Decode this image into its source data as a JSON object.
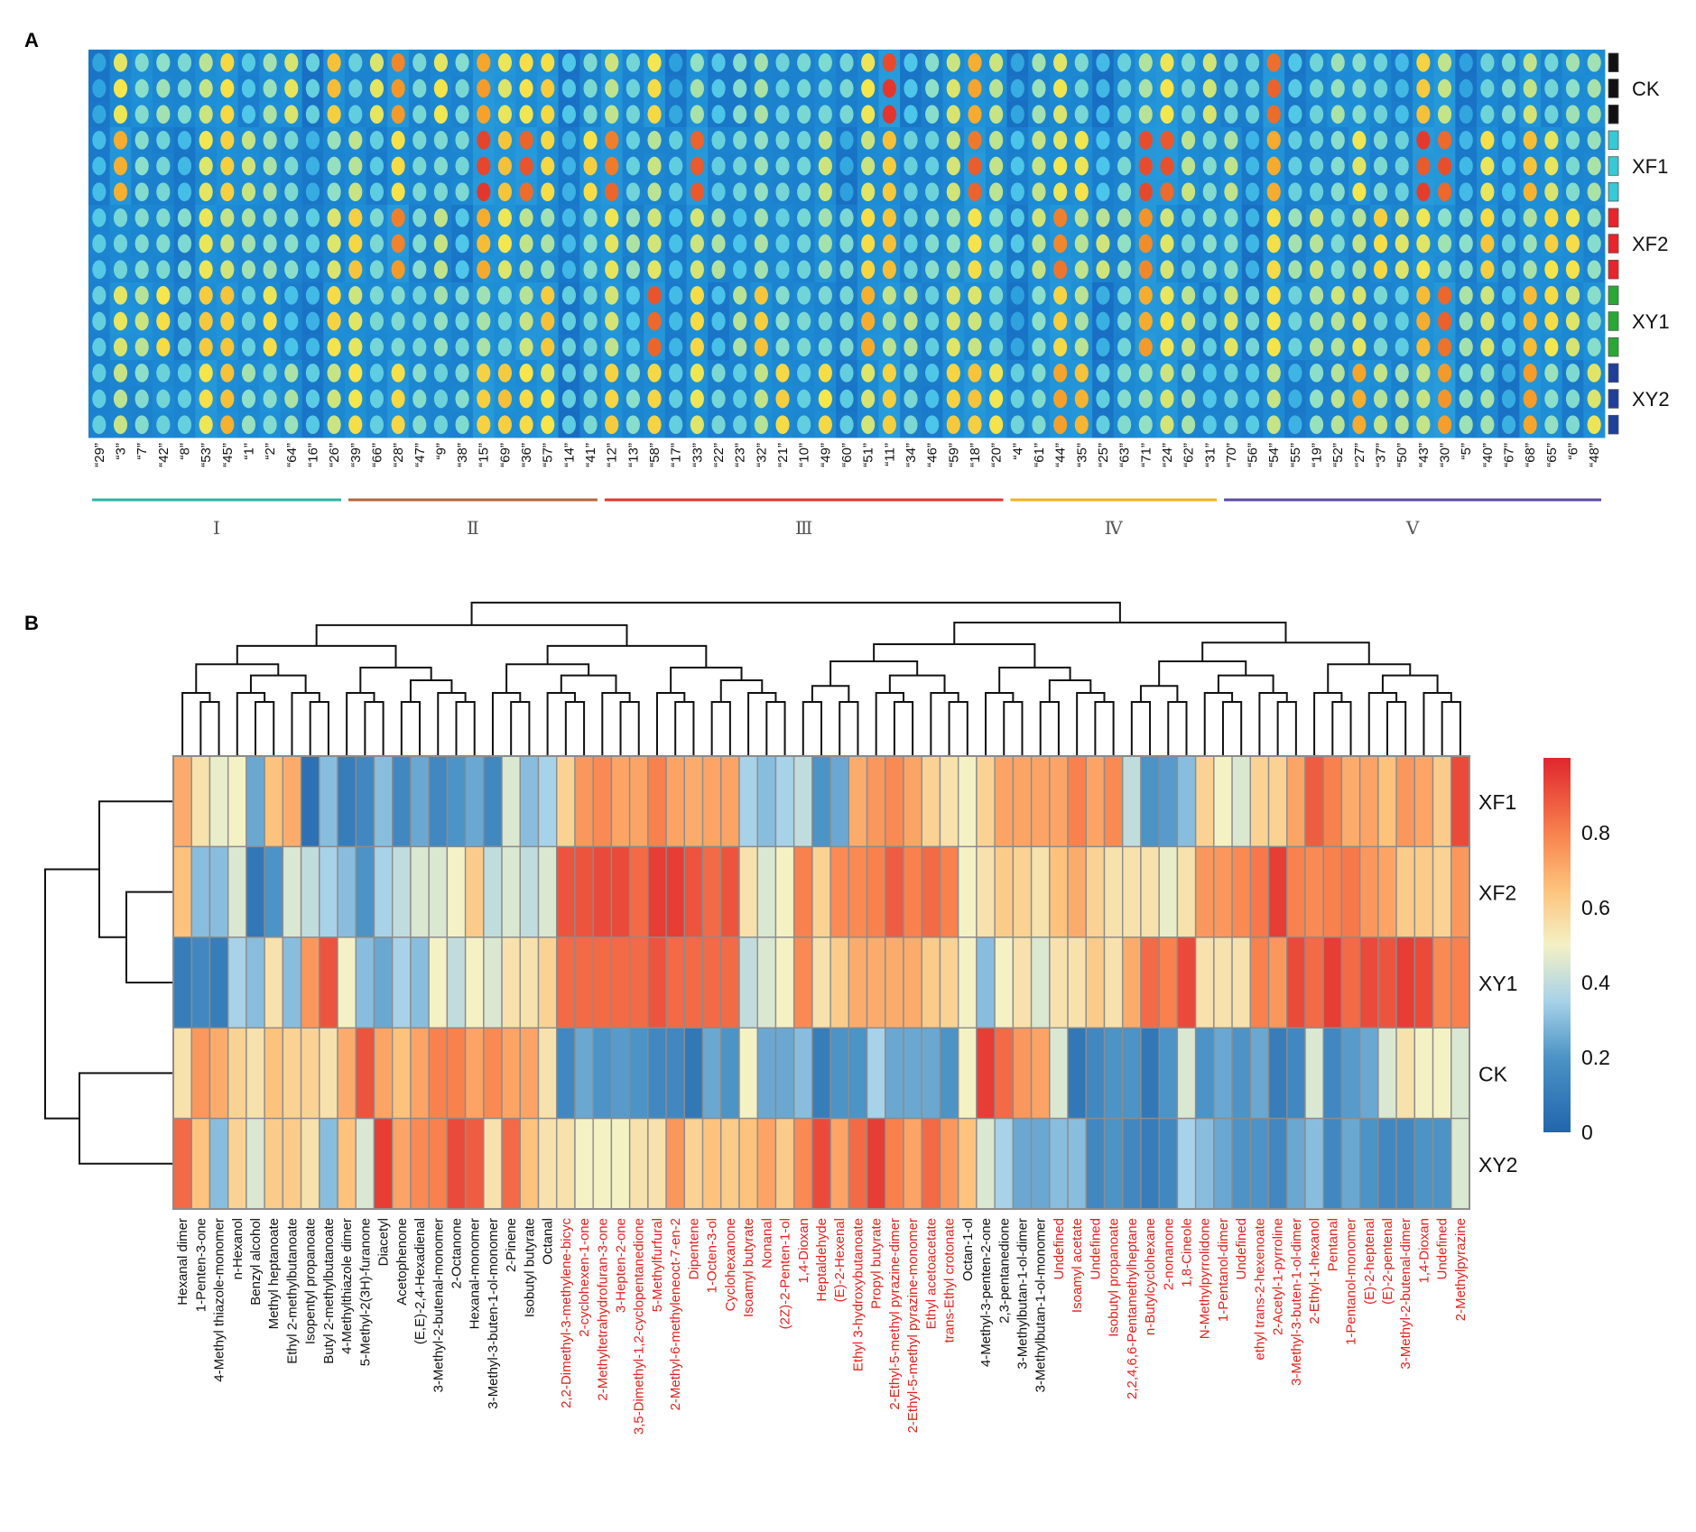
{
  "chart_data": [
    {
      "panel": "A",
      "type": "heatmap",
      "title": "",
      "samples": [
        "CK",
        "XF1",
        "XF2",
        "XY1",
        "XY2"
      ],
      "sample_colors": {
        "CK": "#111111",
        "XF1": "#36c9d6",
        "XF2": "#e8242c",
        "XY1": "#2aa836",
        "XY2": "#1f3f9a"
      },
      "replicates_per_sample": 3,
      "columns": [
        "“29”",
        "“3”",
        "“7”",
        "“42”",
        "“8”",
        "“53”",
        "“45”",
        "“1”",
        "“2”",
        "“64”",
        "“16”",
        "“26”",
        "“39”",
        "“66”",
        "“28”",
        "“47”",
        "“9”",
        "“38”",
        "“15”",
        "“69”",
        "“36”",
        "“57”",
        "“14”",
        "“41”",
        "“12”",
        "“13”",
        "“58”",
        "“17”",
        "“33”",
        "“22”",
        "“23”",
        "“32”",
        "“21”",
        "“10”",
        "“49”",
        "“60”",
        "“51”",
        "“11”",
        "“34”",
        "“46”",
        "“59”",
        "“18”",
        "“20”",
        "“4”",
        "“61”",
        "“44”",
        "“35”",
        "“25”",
        "“63”",
        "“71”",
        "“24”",
        "“62”",
        "“31”",
        "“70”",
        "“56”",
        "“54”",
        "“55”",
        "“19”",
        "“52”",
        "“27”",
        "“37”",
        "“50”",
        "“43”",
        "“30”",
        "“5”",
        "“40”",
        "“67”",
        "“68”",
        "“65”",
        "“6”",
        "“48”"
      ],
      "groups": [
        {
          "label": "Ⅰ",
          "count": 12,
          "color": "#2cb5a5"
        },
        {
          "label": "Ⅱ",
          "count": 12,
          "color": "#b6653a"
        },
        {
          "label": "Ⅲ",
          "count": 19,
          "color": "#e8332a"
        },
        {
          "label": "Ⅳ",
          "count": 10,
          "color": "#f2b21c"
        },
        {
          "label": "Ⅴ",
          "count": 18,
          "color": "#5b4aa5"
        }
      ]
    },
    {
      "panel": "B",
      "type": "heatmap",
      "title": "",
      "rows": [
        "XF1",
        "XF2",
        "XY1",
        "CK",
        "XY2"
      ],
      "colorbar": {
        "min": 0,
        "max": 1,
        "ticks": [
          0,
          0.2,
          0.4,
          0.6,
          0.8
        ],
        "tick_labels": [
          "0",
          "0.2",
          "0.4",
          "0.6",
          "0.8"
        ]
      },
      "columns": [
        "Hexanal dimer",
        "1-Penten-3-one",
        "4-Methyl thiazole-monomer",
        "n-Hexanol",
        "Benzyl alcohol",
        "Methyl heptanoate",
        "Ethyl 2-methylbutanoate",
        "Isopentyl propanoate",
        "Butyl 2-methylbutanoate",
        "4-Methylthiazole dimer",
        "5-Methyl-2(3H)-furanone",
        "Diacetyl",
        "Acetophenone",
        "(E,E)-2,4-Hexadienal",
        "3-Methyl-2-butenal-monomer",
        "2-Octanone",
        "Hexanal-monomer",
        "3-Methyl-3-buten-1-ol-monomer",
        "2-Pinene",
        "Isobutyl butyrate",
        "Octanal",
        "2,2-Dimethyl-3-methylene-bicyc",
        "2-cyclohexen-1-one",
        "2-Methyltetrahydrofuran-3-one",
        "3-Hepten-2-one",
        "3,5-Dimethyl-1,2-cyclopentanedione",
        "5-Methylfurfural",
        "2-Methyl-6-methyleneoct-7-en-2",
        "Dipentene",
        "1-Octen-3-ol",
        "Cyclohexanone",
        "Isoamyl butyrate",
        "Nonanal",
        "(2Z)-2-Penten-1-ol",
        "1,4-Dioxan",
        "Heptaldehyde",
        "(E)-2-Hexenal",
        "Ethyl 3-hydroxybutanoate",
        "Propyl butyrate",
        "2-Ethyl-5-methyl pyrazine-dimer",
        "2-Ethyl-5-methyl pyrazine-monomer",
        "Ethyl acetoacetate",
        "trans-Ethyl crotonate",
        "Octan-1-ol",
        "4-Methyl-3-penten-2-one",
        "2,3-pentanedione",
        "3-Methylbutan-1-ol-dimer",
        "3-Methylbutan-1-ol-monomer",
        "Undefined",
        "Isoamyl acetate",
        "Undefined",
        "Isobutyl propanoate",
        "2,2,4,6,6-Pentamethylheptane",
        "n-Butylcyclohexane",
        "2-nonanone",
        "1,8-Cineole",
        "N-Methylpyrrolidone",
        "1-Pentanol-dimer",
        "Undefined",
        "ethyl trans-2-hexenoate",
        "2-Acetyl-1-pyrroline",
        "3-Methyl-3-buten-1-ol-dimer",
        "2-Ethyl-1-hexanol",
        "Pentanal",
        "1-Pentanol-monomer",
        "(E)-2-heptenal",
        "(E)-2-pentenal",
        "3-Methyl-2-butenal-dimer",
        "1,4-Dioxan",
        "Undefined",
        "2-Methylpyrazine"
      ],
      "column_label_colors": [
        "#111111",
        "#111111",
        "#111111",
        "#111111",
        "#111111",
        "#111111",
        "#111111",
        "#111111",
        "#111111",
        "#111111",
        "#111111",
        "#111111",
        "#111111",
        "#111111",
        "#111111",
        "#111111",
        "#111111",
        "#111111",
        "#111111",
        "#111111",
        "#111111",
        "#e4211c",
        "#e4211c",
        "#e4211c",
        "#e4211c",
        "#e4211c",
        "#e4211c",
        "#e4211c",
        "#e4211c",
        "#e4211c",
        "#e4211c",
        "#e4211c",
        "#e4211c",
        "#e4211c",
        "#e4211c",
        "#e4211c",
        "#e4211c",
        "#e4211c",
        "#e4211c",
        "#e4211c",
        "#e4211c",
        "#e4211c",
        "#e4211c",
        "#111111",
        "#111111",
        "#111111",
        "#111111",
        "#111111",
        "#e4211c",
        "#e4211c",
        "#e4211c",
        "#e4211c",
        "#e4211c",
        "#e4211c",
        "#e4211c",
        "#e4211c",
        "#e4211c",
        "#e4211c",
        "#e4211c",
        "#e4211c",
        "#e4211c",
        "#e4211c",
        "#e4211c",
        "#e4211c",
        "#e4211c",
        "#e4211c",
        "#e4211c",
        "#e4211c",
        "#e4211c",
        "#e4211c",
        "#e4211c"
      ],
      "values": [
        [
          0.7,
          0.55,
          0.48,
          0.5,
          0.25,
          0.65,
          0.7,
          0.05,
          0.3,
          0.1,
          0.15,
          0.3,
          0.15,
          0.25,
          0.15,
          0.2,
          0.25,
          0.15,
          0.45,
          0.3,
          0.35,
          0.6,
          0.75,
          0.78,
          0.72,
          0.72,
          0.8,
          0.72,
          0.7,
          0.72,
          0.72,
          0.35,
          0.3,
          0.35,
          0.4,
          0.2,
          0.25,
          0.7,
          0.75,
          0.78,
          0.72,
          0.6,
          0.55,
          0.5,
          0.6,
          0.72,
          0.72,
          0.72,
          0.72,
          0.8,
          0.72,
          0.78,
          0.4,
          0.2,
          0.22,
          0.3,
          0.6,
          0.5,
          0.45,
          0.6,
          0.6,
          0.72,
          0.88,
          0.8,
          0.7,
          0.72,
          0.65,
          0.75,
          0.72,
          0.62,
          0.92
        ],
        [
          0.65,
          0.3,
          0.3,
          0.45,
          0.08,
          0.2,
          0.45,
          0.4,
          0.35,
          0.3,
          0.2,
          0.35,
          0.4,
          0.45,
          0.45,
          0.5,
          0.62,
          0.4,
          0.45,
          0.4,
          0.45,
          0.9,
          0.9,
          0.92,
          0.92,
          0.85,
          0.95,
          0.95,
          0.9,
          0.85,
          0.9,
          0.55,
          0.45,
          0.5,
          0.8,
          0.6,
          0.78,
          0.78,
          0.8,
          0.88,
          0.8,
          0.85,
          0.8,
          0.5,
          0.55,
          0.62,
          0.6,
          0.55,
          0.65,
          0.7,
          0.6,
          0.55,
          0.55,
          0.55,
          0.48,
          0.55,
          0.75,
          0.75,
          0.78,
          0.82,
          0.95,
          0.8,
          0.78,
          0.8,
          0.82,
          0.75,
          0.72,
          0.62,
          0.62,
          0.6,
          0.75
        ],
        [
          0.1,
          0.15,
          0.1,
          0.35,
          0.3,
          0.55,
          0.3,
          0.75,
          0.9,
          0.5,
          0.3,
          0.25,
          0.35,
          0.3,
          0.5,
          0.4,
          0.5,
          0.45,
          0.55,
          0.55,
          0.6,
          0.85,
          0.85,
          0.85,
          0.85,
          0.85,
          0.9,
          0.85,
          0.85,
          0.85,
          0.85,
          0.4,
          0.45,
          0.5,
          0.78,
          0.55,
          0.62,
          0.7,
          0.7,
          0.7,
          0.7,
          0.62,
          0.6,
          0.5,
          0.3,
          0.5,
          0.55,
          0.45,
          0.55,
          0.55,
          0.62,
          0.55,
          0.7,
          0.85,
          0.8,
          0.92,
          0.55,
          0.55,
          0.55,
          0.8,
          0.75,
          0.92,
          0.85,
          0.95,
          0.85,
          0.92,
          0.9,
          0.95,
          0.92,
          0.78,
          0.8
        ],
        [
          0.55,
          0.75,
          0.7,
          0.6,
          0.55,
          0.65,
          0.6,
          0.6,
          0.55,
          0.7,
          0.9,
          0.72,
          0.65,
          0.72,
          0.8,
          0.8,
          0.72,
          0.78,
          0.72,
          0.72,
          0.55,
          0.15,
          0.25,
          0.2,
          0.22,
          0.2,
          0.15,
          0.15,
          0.08,
          0.25,
          0.2,
          0.5,
          0.25,
          0.25,
          0.3,
          0.1,
          0.2,
          0.2,
          0.35,
          0.25,
          0.25,
          0.25,
          0.2,
          0.5,
          0.95,
          0.85,
          0.75,
          0.72,
          0.45,
          0.08,
          0.15,
          0.2,
          0.2,
          0.08,
          0.2,
          0.45,
          0.2,
          0.25,
          0.2,
          0.25,
          0.1,
          0.15,
          0.45,
          0.15,
          0.22,
          0.25,
          0.45,
          0.55,
          0.5,
          0.5,
          0.45
        ],
        [
          0.85,
          0.65,
          0.3,
          0.6,
          0.45,
          0.62,
          0.62,
          0.55,
          0.3,
          0.65,
          0.45,
          0.95,
          0.72,
          0.78,
          0.8,
          0.92,
          0.88,
          0.55,
          0.85,
          0.65,
          0.55,
          0.55,
          0.5,
          0.5,
          0.5,
          0.55,
          0.55,
          0.75,
          0.6,
          0.65,
          0.62,
          0.65,
          0.72,
          0.62,
          0.78,
          0.92,
          0.72,
          0.85,
          0.95,
          0.8,
          0.72,
          0.85,
          0.75,
          0.65,
          0.45,
          0.35,
          0.25,
          0.25,
          0.3,
          0.3,
          0.15,
          0.2,
          0.15,
          0.1,
          0.15,
          0.35,
          0.3,
          0.25,
          0.2,
          0.2,
          0.15,
          0.25,
          0.3,
          0.15,
          0.25,
          0.2,
          0.15,
          0.15,
          0.2,
          0.2,
          0.45
        ]
      ]
    }
  ]
}
